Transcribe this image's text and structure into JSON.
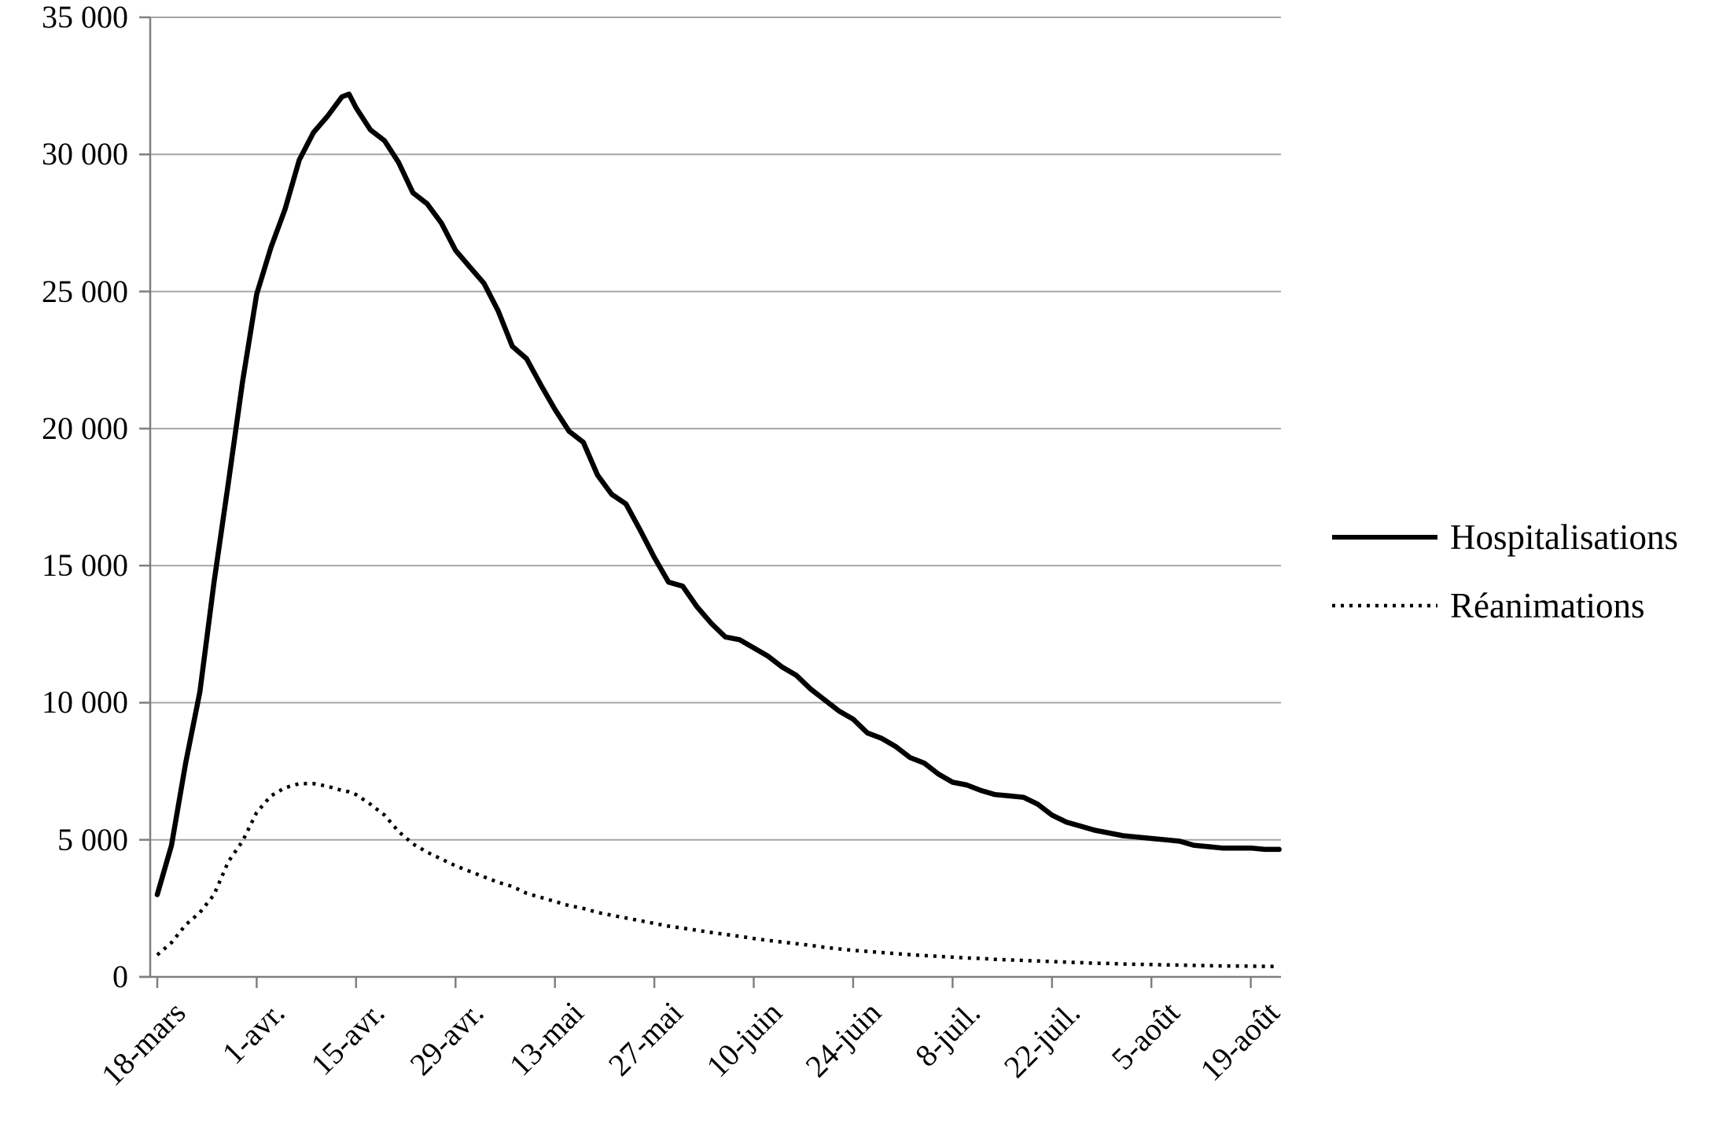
{
  "chart_data": {
    "type": "line",
    "title": "",
    "xlabel": "",
    "ylabel": "",
    "grid": true,
    "legend_position": "right",
    "x_axis": {
      "unit": "date",
      "tick_labels": [
        "18-mars",
        "1-avr.",
        "15-avr.",
        "29-avr.",
        "13-mai",
        "27-mai",
        "10-juin",
        "24-juin",
        "8-juil.",
        "22-juil.",
        "5-août",
        "19-août"
      ],
      "tick_days": [
        0,
        14,
        28,
        42,
        56,
        70,
        84,
        98,
        112,
        126,
        140,
        154
      ]
    },
    "y_axis": {
      "min": 0,
      "max": 35000,
      "step": 5000,
      "tick_values": [
        0,
        5000,
        10000,
        15000,
        20000,
        25000,
        30000,
        35000
      ],
      "tick_labels": [
        "0",
        "5 000",
        "10 000",
        "15 000",
        "20 000",
        "25 000",
        "30 000",
        "35 000"
      ]
    },
    "days": [
      0,
      2,
      4,
      6,
      8,
      10,
      12,
      14,
      16,
      18,
      20,
      22,
      24,
      26,
      27,
      28,
      30,
      32,
      34,
      36,
      38,
      40,
      42,
      44,
      46,
      48,
      50,
      52,
      54,
      56,
      58,
      60,
      62,
      64,
      66,
      68,
      70,
      72,
      74,
      76,
      78,
      80,
      82,
      84,
      86,
      88,
      90,
      92,
      94,
      96,
      98,
      100,
      102,
      104,
      106,
      108,
      110,
      112,
      114,
      116,
      118,
      120,
      122,
      124,
      126,
      128,
      130,
      132,
      134,
      136,
      138,
      140,
      142,
      144,
      146,
      148,
      150,
      152,
      154,
      156,
      158
    ],
    "series": [
      {
        "name": "Hospitalisations",
        "style": "solid",
        "color": "#000000",
        "values": [
          3000,
          4800,
          7800,
          10400,
          14400,
          18000,
          21700,
          24900,
          26600,
          28000,
          29800,
          30800,
          31400,
          32100,
          32200,
          31700,
          30900,
          30500,
          29700,
          28600,
          28200,
          27500,
          26500,
          25900,
          25300,
          24300,
          23000,
          22550,
          21600,
          20700,
          19900,
          19500,
          18300,
          17600,
          17250,
          16300,
          15300,
          14400,
          14250,
          13500,
          12900,
          12400,
          12300,
          12000,
          11700,
          11300,
          11000,
          10500,
          10100,
          9700,
          9400,
          8900,
          8700,
          8400,
          8000,
          7800,
          7400,
          7100,
          7000,
          6800,
          6650,
          6600,
          6550,
          6300,
          5900,
          5650,
          5500,
          5350,
          5250,
          5150,
          5100,
          5050,
          5000,
          4950,
          4800,
          4750,
          4700,
          4700,
          4700,
          4650,
          4650
        ]
      },
      {
        "name": "Réanimations",
        "style": "dotted",
        "color": "#000000",
        "values": [
          800,
          1250,
          1900,
          2350,
          3000,
          4200,
          4950,
          6000,
          6600,
          6900,
          7050,
          7050,
          6950,
          6800,
          6750,
          6650,
          6300,
          5900,
          5300,
          4850,
          4550,
          4300,
          4050,
          3850,
          3650,
          3450,
          3300,
          3050,
          2900,
          2750,
          2600,
          2500,
          2350,
          2250,
          2150,
          2050,
          1950,
          1850,
          1780,
          1700,
          1620,
          1550,
          1480,
          1400,
          1330,
          1270,
          1210,
          1150,
          1080,
          1020,
          970,
          930,
          890,
          850,
          810,
          780,
          750,
          720,
          690,
          670,
          640,
          620,
          600,
          580,
          560,
          540,
          520,
          500,
          490,
          470,
          460,
          450,
          440,
          430,
          420,
          410,
          400,
          395,
          390,
          385,
          380
        ]
      }
    ]
  },
  "colors": {
    "background": "#ffffff",
    "gridline": "#a6a6a6",
    "axis": "#7f7f7f",
    "text": "#000000",
    "series_line": "#000000"
  }
}
